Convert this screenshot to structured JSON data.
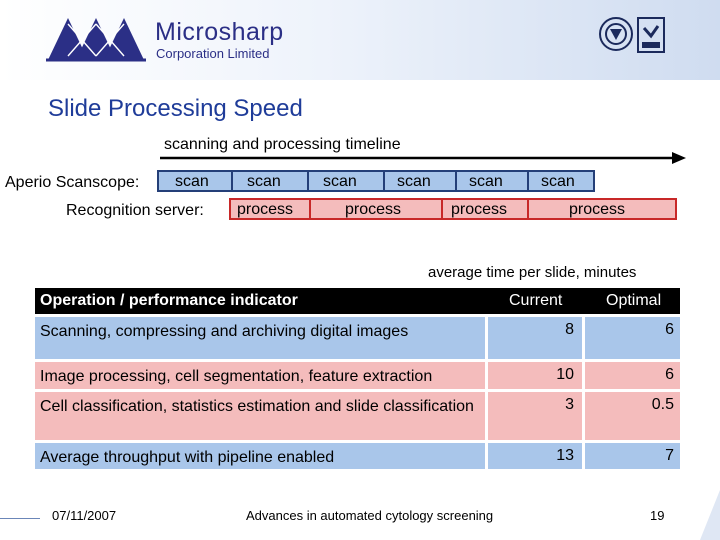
{
  "header": {
    "company_name": "Microsharp",
    "company_subtitle": "Corporation Limited",
    "brand_color": "#2b2f86",
    "certification_marks": [
      "ukas-certification-icon",
      "quality-management-icon"
    ]
  },
  "slide_title": "Slide Processing Speed",
  "timeline": {
    "title": "scanning and processing timeline",
    "scanscope_label": "Aperio Scanscope:",
    "recognition_label": "Recognition server:",
    "scan_segments": [
      "scan",
      "scan",
      "scan",
      "scan",
      "scan",
      "scan"
    ],
    "process_segments": [
      "process",
      "process",
      "process",
      "process"
    ]
  },
  "table_note": "average time per slide, minutes",
  "table": {
    "headers": [
      "Operation / performance indicator",
      "Current",
      "Optimal"
    ],
    "rows": [
      {
        "operation": "Scanning, compressing and archiving digital images",
        "current": "8",
        "optimal": "6"
      },
      {
        "operation": "Image processing, cell segmentation, feature extraction",
        "current": "10",
        "optimal": "6"
      },
      {
        "operation": "Cell classification, statistics estimation and slide classification",
        "current": "3",
        "optimal": "0.5"
      },
      {
        "operation": "Average throughput with pipeline enabled",
        "current": "13",
        "optimal": "7"
      }
    ]
  },
  "footer": {
    "date": "07/11/2007",
    "title": "Advances in automated cytology screening",
    "page": "19"
  }
}
